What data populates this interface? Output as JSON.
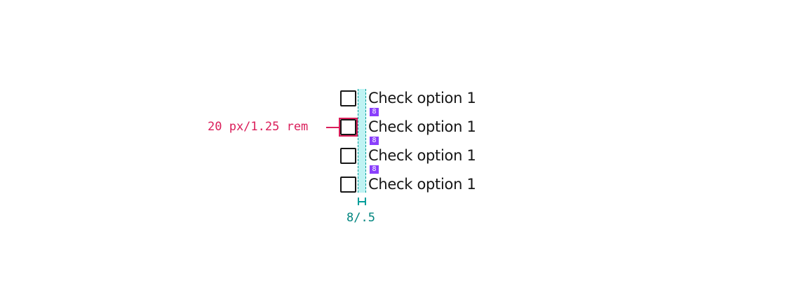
{
  "options": [
    {
      "label": "Check option 1",
      "checked": false
    },
    {
      "label": "Check option 1",
      "checked": false
    },
    {
      "label": "Check option 1",
      "checked": false
    },
    {
      "label": "Check option 1",
      "checked": false
    }
  ],
  "spacing_badges": [
    "8",
    "8",
    "8"
  ],
  "annotations": {
    "checkbox_size": "20 px/1.25 rem",
    "gap": "8/.5"
  },
  "colors": {
    "size_annotation": "#da1e5a",
    "gap_annotation": "#009d9a",
    "gap_band": "#bff3f3",
    "spacing_badge": "#8a3ffc"
  }
}
